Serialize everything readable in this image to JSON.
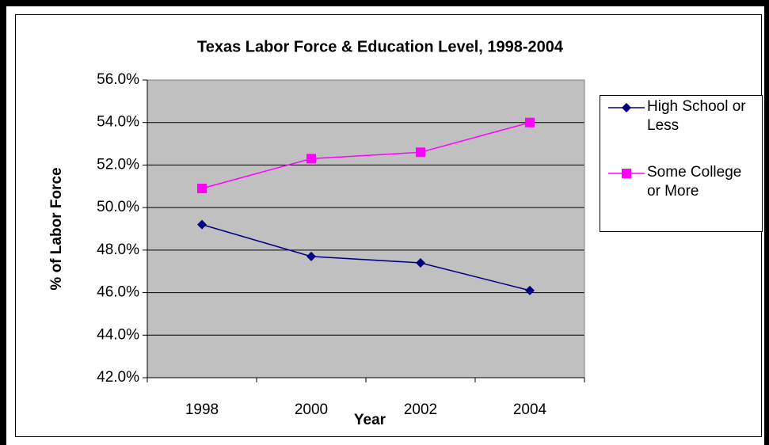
{
  "chart_data": {
    "type": "line",
    "title": "Texas Labor Force & Education Level, 1998-2004",
    "x_label": "Year",
    "y_label": "% of Labor Force",
    "categories": [
      "1998",
      "2000",
      "2002",
      "2004"
    ],
    "series": [
      {
        "name": "High School or Less",
        "color": "#000080",
        "marker": "diamond",
        "values": [
          49.2,
          47.7,
          47.4,
          46.1
        ]
      },
      {
        "name": "Some College or More",
        "color": "#ff00ff",
        "marker": "square",
        "values": [
          50.9,
          52.3,
          52.6,
          54.0
        ]
      }
    ],
    "ylim": [
      42,
      56
    ],
    "yticks": [
      {
        "value": 42,
        "label": "42.0%"
      },
      {
        "value": 44,
        "label": "44.0%"
      },
      {
        "value": 46,
        "label": "46.0%"
      },
      {
        "value": 48,
        "label": "48.0%"
      },
      {
        "value": 50,
        "label": "50.0%"
      },
      {
        "value": 52,
        "label": "52.0%"
      },
      {
        "value": 54,
        "label": "54.0%"
      },
      {
        "value": 56,
        "label": "56.0%"
      }
    ],
    "grid": true,
    "plot_background": "#c0c0c0",
    "legend": "right"
  }
}
